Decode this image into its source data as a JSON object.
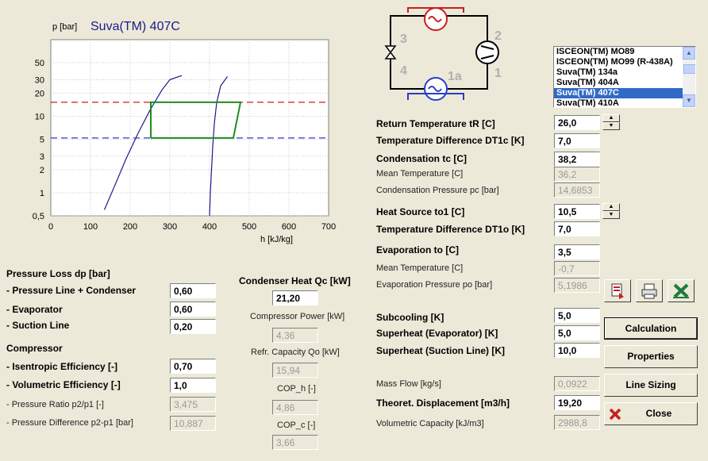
{
  "chart": {
    "ylabel": "p [bar]",
    "title": "Suva(TM) 407C",
    "xlabel": "h [kJ/kg]",
    "yticks": [
      "50",
      "30",
      "20",
      "10",
      "5",
      "3",
      "2",
      "1",
      "0,5"
    ],
    "xticks": [
      "0",
      "100",
      "200",
      "300",
      "400",
      "500",
      "600",
      "700"
    ]
  },
  "chart_data": {
    "type": "line",
    "title": "Suva(TM) 407C",
    "xlabel": "h [kJ/kg]",
    "ylabel": "p [bar]",
    "xlim": [
      0,
      700
    ],
    "ylim": [
      0.5,
      100
    ],
    "yscale": "log",
    "grid": true,
    "series": [
      {
        "color": "#1a1a8c",
        "style": "solid",
        "x": [
          135,
          160,
          190,
          220,
          250,
          280,
          300,
          330
        ],
        "y": [
          0.6,
          1.2,
          2.8,
          6,
          12,
          22,
          30,
          34
        ]
      },
      {
        "color": "#1a1a8c",
        "style": "solid",
        "x": [
          400,
          402,
          405,
          408,
          412,
          418,
          428,
          445
        ],
        "y": [
          0.5,
          1,
          2,
          4,
          8,
          15,
          25,
          33
        ]
      },
      {
        "color": "#c81e1e",
        "style": "dashed",
        "x": [
          0,
          700
        ],
        "y": [
          15.2,
          15.2
        ]
      },
      {
        "color": "#2a3cc8",
        "style": "dashed",
        "x": [
          0,
          700
        ],
        "y": [
          5.2,
          5.2
        ]
      },
      {
        "color": "#1e8c1e",
        "style": "solid",
        "x": [
          252,
          252,
          430,
          478,
          460,
          252
        ],
        "y": [
          5.2,
          15.2,
          15.2,
          15.2,
          5.2,
          5.2
        ]
      }
    ]
  },
  "pressure_loss": {
    "heading": "Pressure Loss dp [bar]",
    "line_condenser_label": "- Pressure Line + Condenser",
    "line_condenser_value": "0,60",
    "evaporator_label": "- Evaporator",
    "evaporator_value": "0,60",
    "suction_label": "- Suction Line",
    "suction_value": "0,20"
  },
  "compressor": {
    "heading": "Compressor",
    "isentropic_label": "- Isentropic Efficiency [-]",
    "isentropic_value": "0,70",
    "volumetric_label": "- Volumetric Efficiency [-]",
    "volumetric_value": "1,0",
    "ratio_label": "- Pressure Ratio p2/p1 [-]",
    "ratio_value": "3,475",
    "difference_label": "- Pressure Difference p2-p1 [bar]",
    "difference_value": "10,887"
  },
  "center": {
    "qc_label": "Condenser Heat Qc [kW]",
    "qc_value": "21,20",
    "power_label": "Compressor Power [kW]",
    "power_value": "4,36",
    "refr_label": "Refr. Capacity Qo [kW]",
    "refr_value": "15,94",
    "coph_label": "COP_h [-]",
    "coph_value": "4,86",
    "copc_label": "COP_c [-]",
    "copc_value": "3,66"
  },
  "diagram": {
    "labels": [
      "3",
      "4",
      "2",
      "1a",
      "1"
    ]
  },
  "refrigerants": {
    "items": [
      "ISCEON(TM) MO89",
      "ISCEON(TM) MO99 (R-438A)",
      "Suva(TM) 134a",
      "Suva(TM) 404A",
      "Suva(TM) 407C",
      "Suva(TM) 410A"
    ],
    "selected": "Suva(TM) 407C"
  },
  "right": {
    "return_temp_label": "Return Temperature tR [C]",
    "return_temp_value": "26,0",
    "dt1c_label": "Temperature Difference DT1c [K]",
    "dt1c_value": "7,0",
    "tc_label": "Condensation tc [C]",
    "tc_value": "38,2",
    "mean_c_label": "Mean Temperature [C]",
    "mean_c_value": "36,2",
    "pc_label": "Condensation Pressure pc [bar]",
    "pc_value": "14,6853",
    "to1_label": "Heat Source to1 [C]",
    "to1_value": "10,5",
    "dt1o_label": "Temperature Difference DT1o [K]",
    "dt1o_value": "7,0",
    "to_label": "Evaporation to [C]",
    "to_value": "3,5",
    "mean_o_label": "Mean Temperature [C]",
    "mean_o_value": "-0,7",
    "po_label": "Evaporation Pressure po [bar]",
    "po_value": "5,1986",
    "subcool_label": "Subcooling [K]",
    "subcool_value": "5,0",
    "sh_evap_label": "Superheat (Evaporator) [K]",
    "sh_evap_value": "5,0",
    "sh_suction_label": "Superheat (Suction Line) [K]",
    "sh_suction_value": "10,0",
    "massflow_label": "Mass Flow [kg/s]",
    "massflow_value": "0,0922",
    "displacement_label": "Theoret. Displacement [m3/h]",
    "displacement_value": "19,20",
    "volcap_label": "Volumetric Capacity [kJ/m3]",
    "volcap_value": "2988,8"
  },
  "buttons": {
    "calculation": "Calculation",
    "properties": "Properties",
    "line_sizing": "Line Sizing",
    "close": "Close"
  }
}
